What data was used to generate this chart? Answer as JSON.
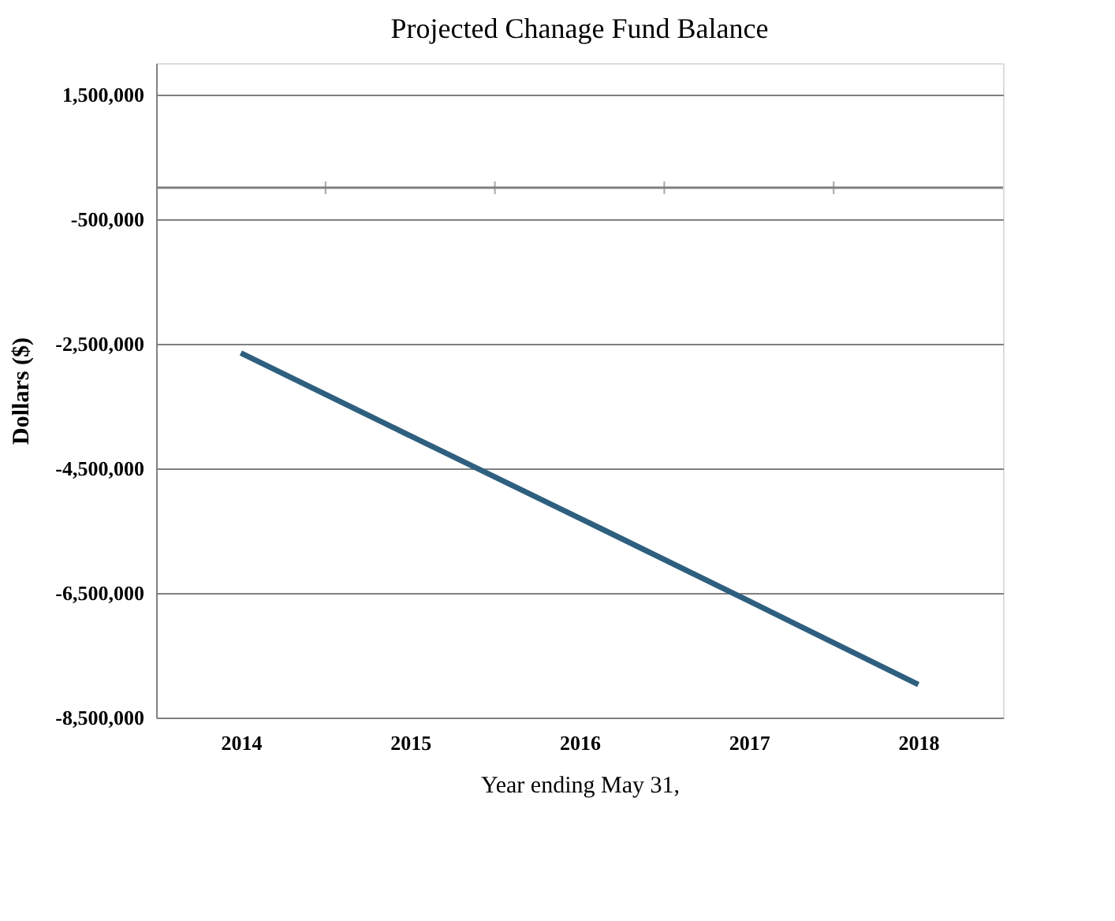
{
  "chart_data": {
    "type": "line",
    "title": "Projected  Chanage Fund Balance",
    "xlabel": "Year ending May 31,",
    "ylabel": "Dollars ($)",
    "categories": [
      "2014",
      "2015",
      "2016",
      "2017",
      "2018"
    ],
    "series": [
      {
        "color": "#2e5f7f",
        "values": [
          -2650000,
          -3980000,
          -5300000,
          -6630000,
          -7970000
        ]
      }
    ],
    "ylim": [
      -8500000,
      2000000
    ],
    "yticks": [
      {
        "value": -8500000,
        "label": "-8,500,000"
      },
      {
        "value": -6500000,
        "label": "-6,500,000"
      },
      {
        "value": -4500000,
        "label": "-4,500,000"
      },
      {
        "value": -2500000,
        "label": "-2,500,000"
      },
      {
        "value": -500000,
        "label": "-500,000"
      },
      {
        "value": 1500000,
        "label": "1,500,000"
      }
    ],
    "ref_lines": [
      {
        "axis": "y",
        "value": 0,
        "color": "#808080"
      }
    ],
    "grid": "y",
    "marker": "none",
    "line_style": "solid"
  }
}
